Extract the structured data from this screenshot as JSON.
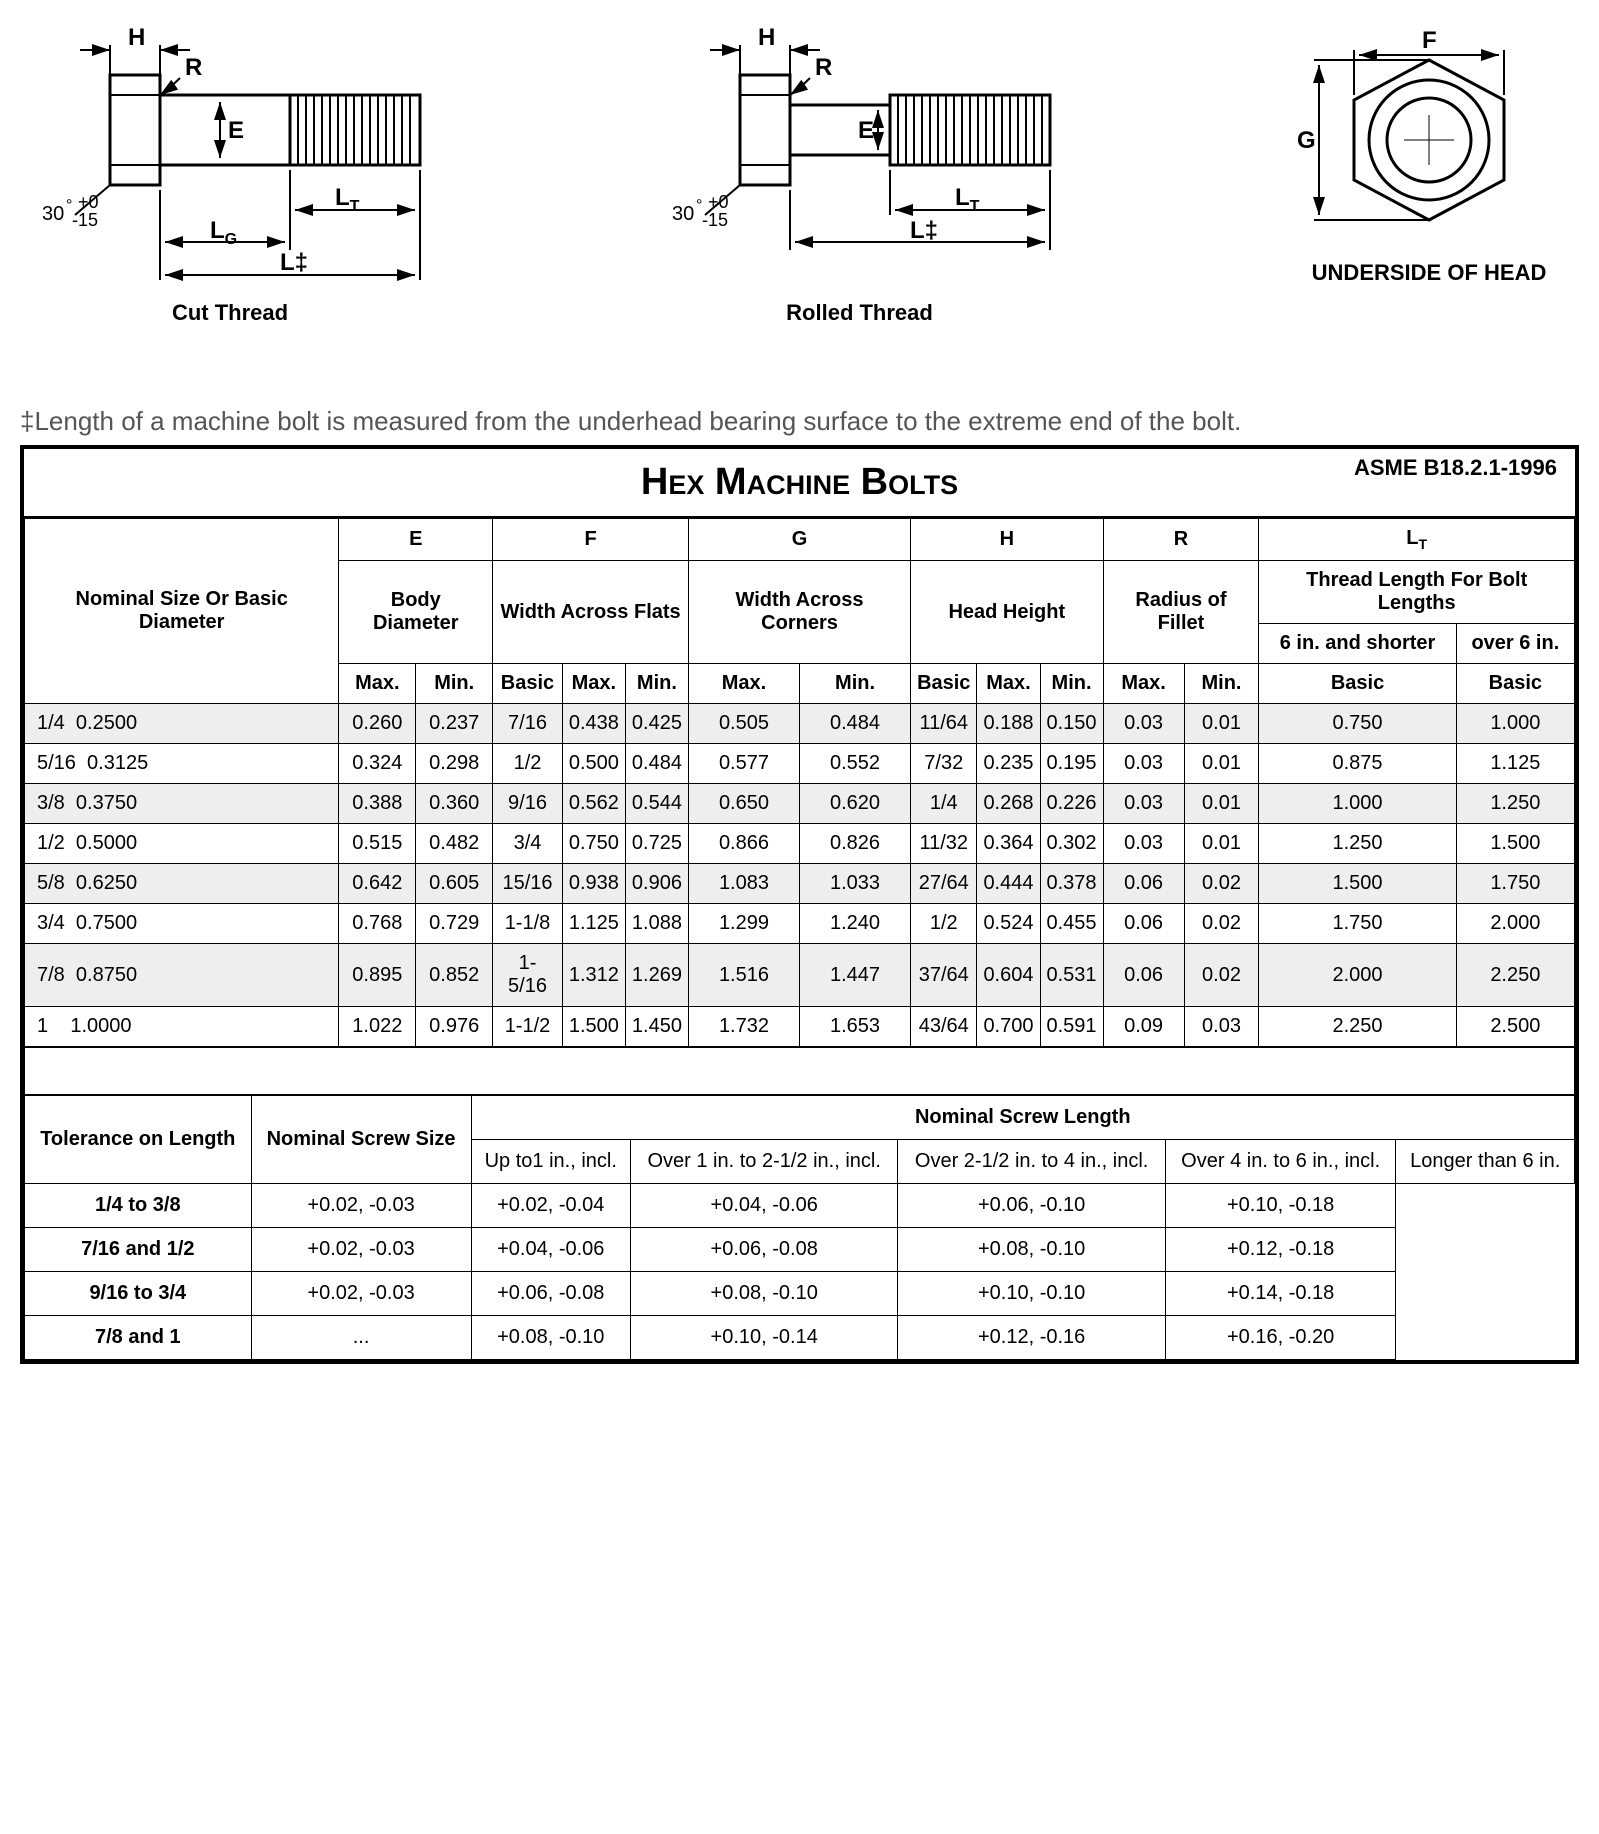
{
  "diagrams": {
    "cut": {
      "caption": "Cut Thread",
      "labels": {
        "H": "H",
        "R": "R",
        "E": "E",
        "LT": "L",
        "LTsub": "T",
        "LG": "L",
        "LGsub": "G",
        "L": "L‡",
        "angle1": "30",
        "angle2": "+0",
        "angle3": "-15",
        "deg": "°"
      }
    },
    "rolled": {
      "caption": "Rolled Thread"
    },
    "head": {
      "caption": "UNDERSIDE OF HEAD",
      "labels": {
        "F": "F",
        "G": "G"
      }
    }
  },
  "note": "‡Length of a machine bolt is measured from the underhead bearing surface to the extreme end of the bolt.",
  "title": "Hex Machine Bolts",
  "spec": "ASME B18.2.1-1996",
  "headers": {
    "nominal": "Nominal Size Or Basic Diameter",
    "E": "E",
    "E_desc": "Body Diameter",
    "F": "F",
    "F_desc": "Width Across Flats",
    "G": "G",
    "G_desc": "Width Across Corners",
    "H": "H",
    "H_desc": "Head Height",
    "R": "R",
    "R_desc": "Radius of Fillet",
    "LT": "L",
    "LTsub": "T",
    "LT_desc": "Thread Length For Bolt Lengths",
    "six": "6 in. and shorter",
    "over": "over 6 in.",
    "Max": "Max.",
    "Min": "Min.",
    "Basic": "Basic"
  },
  "rows": [
    {
      "nom": "1/4  0.2500",
      "e": [
        "0.260",
        "0.237"
      ],
      "f": [
        "7/16",
        "0.438",
        "0.425"
      ],
      "g": [
        "0.505",
        "0.484"
      ],
      "h": [
        "11/64",
        "0.188",
        "0.150"
      ],
      "r": [
        "0.03",
        "0.01"
      ],
      "lt": [
        "0.750",
        "1.000"
      ]
    },
    {
      "nom": "5/16  0.3125",
      "e": [
        "0.324",
        "0.298"
      ],
      "f": [
        "1/2",
        "0.500",
        "0.484"
      ],
      "g": [
        "0.577",
        "0.552"
      ],
      "h": [
        "7/32",
        "0.235",
        "0.195"
      ],
      "r": [
        "0.03",
        "0.01"
      ],
      "lt": [
        "0.875",
        "1.125"
      ]
    },
    {
      "nom": "3/8  0.3750",
      "e": [
        "0.388",
        "0.360"
      ],
      "f": [
        "9/16",
        "0.562",
        "0.544"
      ],
      "g": [
        "0.650",
        "0.620"
      ],
      "h": [
        "1/4",
        "0.268",
        "0.226"
      ],
      "r": [
        "0.03",
        "0.01"
      ],
      "lt": [
        "1.000",
        "1.250"
      ]
    },
    {
      "nom": "1/2  0.5000",
      "e": [
        "0.515",
        "0.482"
      ],
      "f": [
        "3/4",
        "0.750",
        "0.725"
      ],
      "g": [
        "0.866",
        "0.826"
      ],
      "h": [
        "11/32",
        "0.364",
        "0.302"
      ],
      "r": [
        "0.03",
        "0.01"
      ],
      "lt": [
        "1.250",
        "1.500"
      ]
    },
    {
      "nom": "5/8  0.6250",
      "e": [
        "0.642",
        "0.605"
      ],
      "f": [
        "15/16",
        "0.938",
        "0.906"
      ],
      "g": [
        "1.083",
        "1.033"
      ],
      "h": [
        "27/64",
        "0.444",
        "0.378"
      ],
      "r": [
        "0.06",
        "0.02"
      ],
      "lt": [
        "1.500",
        "1.750"
      ]
    },
    {
      "nom": "3/4  0.7500",
      "e": [
        "0.768",
        "0.729"
      ],
      "f": [
        "1-1/8",
        "1.125",
        "1.088"
      ],
      "g": [
        "1.299",
        "1.240"
      ],
      "h": [
        "1/2",
        "0.524",
        "0.455"
      ],
      "r": [
        "0.06",
        "0.02"
      ],
      "lt": [
        "1.750",
        "2.000"
      ]
    },
    {
      "nom": "7/8  0.8750",
      "e": [
        "0.895",
        "0.852"
      ],
      "f": [
        "1-5/16",
        "1.312",
        "1.269"
      ],
      "g": [
        "1.516",
        "1.447"
      ],
      "h": [
        "37/64",
        "0.604",
        "0.531"
      ],
      "r": [
        "0.06",
        "0.02"
      ],
      "lt": [
        "2.000",
        "2.250"
      ]
    },
    {
      "nom": "1    1.0000",
      "e": [
        "1.022",
        "0.976"
      ],
      "f": [
        "1-1/2",
        "1.500",
        "1.450"
      ],
      "g": [
        "1.732",
        "1.653"
      ],
      "h": [
        "43/64",
        "0.700",
        "0.591"
      ],
      "r": [
        "0.09",
        "0.03"
      ],
      "lt": [
        "2.250",
        "2.500"
      ]
    }
  ],
  "tolerance": {
    "label": "Tolerance on Length",
    "size_header": "Nominal Screw Size",
    "len_header": "Nominal Screw Length",
    "len_cols": [
      "Up to1 in., incl.",
      "Over 1 in. to 2-1/2 in., incl.",
      "Over 2-1/2 in. to 4 in., incl.",
      "Over 4 in. to 6 in., incl.",
      "Longer than 6 in."
    ],
    "rows": [
      {
        "size": "1/4 to 3/8",
        "vals": [
          "+0.02, -0.03",
          "+0.02, -0.04",
          "+0.04, -0.06",
          "+0.06, -0.10",
          "+0.10, -0.18"
        ]
      },
      {
        "size": "7/16 and 1/2",
        "vals": [
          "+0.02, -0.03",
          "+0.04, -0.06",
          "+0.06, -0.08",
          "+0.08, -0.10",
          "+0.12, -0.18"
        ]
      },
      {
        "size": "9/16 to 3/4",
        "vals": [
          "+0.02, -0.03",
          "+0.06, -0.08",
          "+0.08, -0.10",
          "+0.10, -0.10",
          "+0.14, -0.18"
        ]
      },
      {
        "size": "7/8 and 1",
        "vals": [
          "...",
          "+0.08, -0.10",
          "+0.10, -0.14",
          "+0.12, -0.16",
          "+0.16, -0.20"
        ]
      }
    ]
  }
}
